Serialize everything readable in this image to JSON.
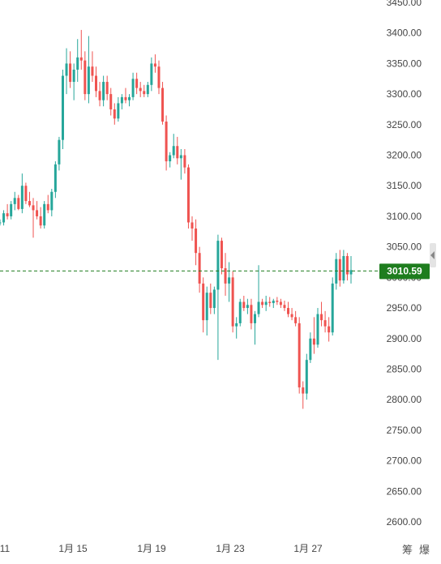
{
  "chart_data": {
    "type": "candlestick",
    "up_color": "#26a69a",
    "down_color": "#ef5350",
    "y_ticks": [
      "3450.00",
      "3400.00",
      "3350.00",
      "3300.00",
      "3250.00",
      "3200.00",
      "3150.00",
      "3100.00",
      "3050.00",
      "3000.00",
      "2950.00",
      "2900.00",
      "2850.00",
      "2800.00",
      "2750.00",
      "2700.00",
      "2650.00",
      "2600.00"
    ],
    "y_tick_values": [
      3450,
      3400,
      3350,
      3300,
      3250,
      3200,
      3150,
      3100,
      3050,
      3000,
      2950,
      2900,
      2850,
      2800,
      2750,
      2700,
      2650,
      2600
    ],
    "x_ticks": [
      "11",
      "1月 15",
      "1月 19",
      "1月 23",
      "1月 27"
    ],
    "current_price": 3010.59,
    "current_price_label": "3010.59",
    "current_price_color": "#1e7d1e",
    "candles": [
      [
        3090,
        3095,
        3085,
        3090
      ],
      [
        3090,
        3110,
        3085,
        3105
      ],
      [
        3105,
        3120,
        3095,
        3100
      ],
      [
        3100,
        3125,
        3095,
        3120
      ],
      [
        3120,
        3140,
        3110,
        3130
      ],
      [
        3130,
        3135,
        3110,
        3112
      ],
      [
        3112,
        3170,
        3105,
        3150
      ],
      [
        3150,
        3155,
        3120,
        3125
      ],
      [
        3125,
        3140,
        3115,
        3118
      ],
      [
        3118,
        3130,
        3065,
        3110
      ],
      [
        3110,
        3125,
        3095,
        3100
      ],
      [
        3100,
        3115,
        3080,
        3085
      ],
      [
        3085,
        3125,
        3080,
        3120
      ],
      [
        3120,
        3135,
        3105,
        3110
      ],
      [
        3110,
        3145,
        3100,
        3140
      ],
      [
        3140,
        3190,
        3130,
        3185
      ],
      [
        3185,
        3230,
        3175,
        3225
      ],
      [
        3225,
        3340,
        3210,
        3330
      ],
      [
        3330,
        3375,
        3300,
        3350
      ],
      [
        3350,
        3370,
        3310,
        3320
      ],
      [
        3320,
        3350,
        3290,
        3340
      ],
      [
        3340,
        3390,
        3320,
        3360
      ],
      [
        3360,
        3405,
        3340,
        3355
      ],
      [
        3355,
        3370,
        3290,
        3300
      ],
      [
        3300,
        3395,
        3285,
        3345
      ],
      [
        3345,
        3370,
        3320,
        3330
      ],
      [
        3330,
        3345,
        3295,
        3305
      ],
      [
        3305,
        3320,
        3280,
        3290
      ],
      [
        3290,
        3330,
        3280,
        3320
      ],
      [
        3320,
        3330,
        3290,
        3300
      ],
      [
        3300,
        3310,
        3265,
        3275
      ],
      [
        3275,
        3285,
        3250,
        3260
      ],
      [
        3260,
        3295,
        3255,
        3285
      ],
      [
        3285,
        3300,
        3275,
        3295
      ],
      [
        3295,
        3310,
        3285,
        3290
      ],
      [
        3290,
        3300,
        3280,
        3295
      ],
      [
        3295,
        3335,
        3290,
        3325
      ],
      [
        3325,
        3335,
        3300,
        3310
      ],
      [
        3310,
        3320,
        3295,
        3305
      ],
      [
        3305,
        3315,
        3295,
        3300
      ],
      [
        3300,
        3320,
        3295,
        3315
      ],
      [
        3315,
        3360,
        3305,
        3350
      ],
      [
        3350,
        3365,
        3335,
        3345
      ],
      [
        3345,
        3355,
        3300,
        3310
      ],
      [
        3310,
        3320,
        3250,
        3255
      ],
      [
        3255,
        3265,
        3175,
        3190
      ],
      [
        3190,
        3205,
        3180,
        3200
      ],
      [
        3200,
        3235,
        3195,
        3215
      ],
      [
        3215,
        3230,
        3185,
        3195
      ],
      [
        3195,
        3210,
        3160,
        3200
      ],
      [
        3200,
        3210,
        3170,
        3180
      ],
      [
        3180,
        3185,
        3080,
        3090
      ],
      [
        3090,
        3100,
        3060,
        3080
      ],
      [
        3080,
        3095,
        3020,
        3040
      ],
      [
        3040,
        3050,
        2975,
        2990
      ],
      [
        2990,
        3000,
        2910,
        2930
      ],
      [
        2930,
        2985,
        2905,
        2975
      ],
      [
        2975,
        2990,
        2940,
        2950
      ],
      [
        2950,
        2985,
        2940,
        2980
      ],
      [
        2980,
        3070,
        2865,
        3060
      ],
      [
        3060,
        3065,
        3005,
        3015
      ],
      [
        3015,
        3040,
        2970,
        2990
      ],
      [
        2990,
        3025,
        2960,
        3000
      ],
      [
        3000,
        3010,
        2910,
        2920
      ],
      [
        2920,
        2935,
        2900,
        2925
      ],
      [
        2925,
        2965,
        2920,
        2960
      ],
      [
        2960,
        2970,
        2945,
        2950
      ],
      [
        2950,
        2965,
        2940,
        2955
      ],
      [
        2955,
        2965,
        2915,
        2925
      ],
      [
        2925,
        2945,
        2890,
        2940
      ],
      [
        2940,
        3020,
        2935,
        2960
      ],
      [
        2960,
        2965,
        2950,
        2955
      ],
      [
        2955,
        2970,
        2945,
        2960
      ],
      [
        2960,
        2968,
        2952,
        2958
      ],
      [
        2958,
        2965,
        2950,
        2962
      ],
      [
        2962,
        2968,
        2955,
        2960
      ],
      [
        2960,
        2965,
        2950,
        2955
      ],
      [
        2955,
        2962,
        2945,
        2950
      ],
      [
        2950,
        2960,
        2935,
        2940
      ],
      [
        2940,
        2950,
        2930,
        2935
      ],
      [
        2935,
        2945,
        2920,
        2925
      ],
      [
        2925,
        2935,
        2810,
        2820
      ],
      [
        2820,
        2830,
        2785,
        2810
      ],
      [
        2810,
        2875,
        2800,
        2865
      ],
      [
        2865,
        2910,
        2860,
        2900
      ],
      [
        2900,
        2935,
        2875,
        2890
      ],
      [
        2890,
        2950,
        2885,
        2940
      ],
      [
        2940,
        2960,
        2920,
        2930
      ],
      [
        2930,
        2945,
        2910,
        2920
      ],
      [
        2920,
        2935,
        2895,
        2910
      ],
      [
        2910,
        3000,
        2905,
        2990
      ],
      [
        2990,
        3040,
        2980,
        3030
      ],
      [
        3030,
        3045,
        2985,
        2995
      ],
      [
        2995,
        3045,
        2990,
        3035
      ],
      [
        3035,
        3040,
        2995,
        3005
      ],
      [
        3005,
        3035,
        2990,
        3012
      ]
    ]
  },
  "toolbar": {
    "icon1_label": "筹",
    "icon2_label": "爆"
  }
}
